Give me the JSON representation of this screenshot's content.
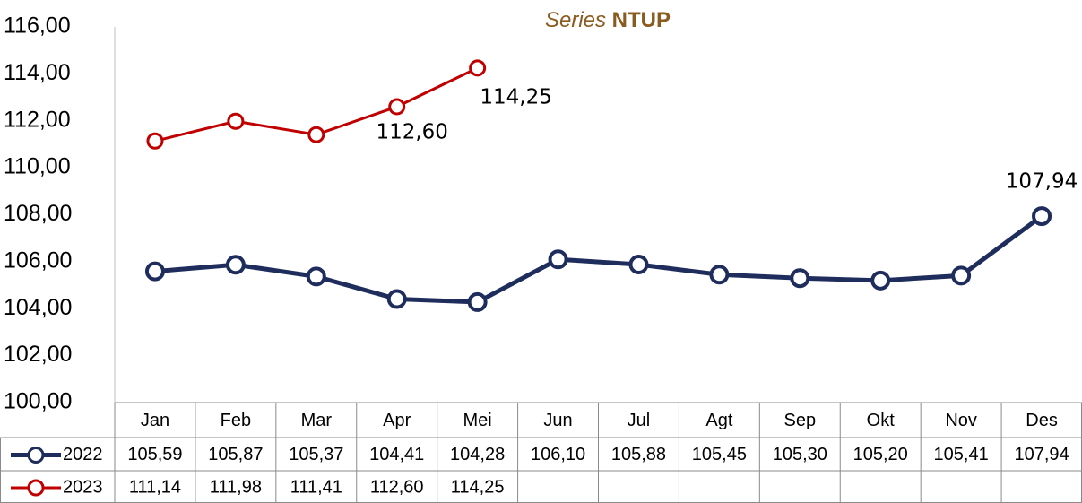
{
  "chart_data": {
    "type": "line",
    "title": [
      "Series",
      "NTUP"
    ],
    "categories": [
      "Jan",
      "Feb",
      "Mar",
      "Apr",
      "Mei",
      "Jun",
      "Jul",
      "Agt",
      "Sep",
      "Okt",
      "Nov",
      "Des"
    ],
    "series": [
      {
        "name": "2022",
        "color": "#1f2d5c",
        "values": [
          105.59,
          105.87,
          105.37,
          104.41,
          104.28,
          106.1,
          105.88,
          105.45,
          105.3,
          105.2,
          105.41,
          107.94
        ],
        "value_labels": [
          "105,59",
          "105,87",
          "105,37",
          "104,41",
          "104,28",
          "106,10",
          "105,88",
          "105,45",
          "105,30",
          "105,20",
          "105,41",
          "107,94"
        ]
      },
      {
        "name": "2023",
        "color": "#c00000",
        "values": [
          111.14,
          111.98,
          111.41,
          112.6,
          114.25,
          null,
          null,
          null,
          null,
          null,
          null,
          null
        ],
        "value_labels": [
          "111,14",
          "111,98",
          "111,41",
          "112,60",
          "114,25",
          null,
          null,
          null,
          null,
          null,
          null,
          null
        ]
      }
    ],
    "ylim": [
      100,
      116
    ],
    "yticks": [
      {
        "value": 100,
        "label": "100,00"
      },
      {
        "value": 102,
        "label": "102,00"
      },
      {
        "value": 104,
        "label": "104,00"
      },
      {
        "value": 106,
        "label": "106,00"
      },
      {
        "value": 108,
        "label": "108,00"
      },
      {
        "value": 110,
        "label": "110,00"
      },
      {
        "value": 112,
        "label": "112,00"
      },
      {
        "value": 114,
        "label": "114,00"
      },
      {
        "value": 116,
        "label": "116,00"
      }
    ],
    "grid": false
  }
}
